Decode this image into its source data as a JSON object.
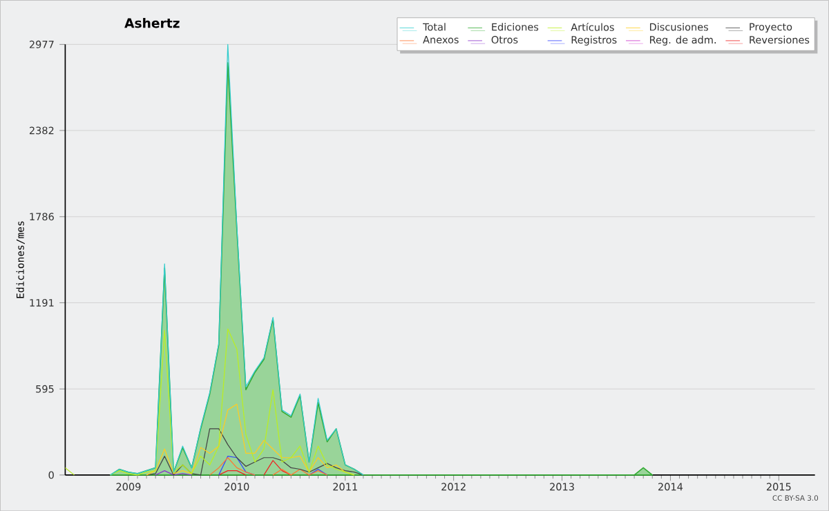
{
  "chart_data": {
    "type": "line",
    "title": "Ashertz",
    "ylabel": "Ediciones/mes",
    "x": [
      "2008-06",
      "2008-07",
      "2008-08",
      "2008-09",
      "2008-10",
      "2008-11",
      "2008-12",
      "2009-01",
      "2009-02",
      "2009-03",
      "2009-04",
      "2009-05",
      "2009-06",
      "2009-07",
      "2009-08",
      "2009-09",
      "2009-10",
      "2009-11",
      "2009-12",
      "2010-01",
      "2010-02",
      "2010-03",
      "2010-04",
      "2010-05",
      "2010-06",
      "2010-07",
      "2010-08",
      "2010-09",
      "2010-10",
      "2010-11",
      "2010-12",
      "2011-01",
      "2011-02",
      "2011-03",
      "2013-09",
      "2013-10",
      "2013-11"
    ],
    "series": [
      {
        "name": "Total",
        "color": "#33cccc",
        "values": [
          null,
          null,
          null,
          null,
          null,
          0,
          40,
          20,
          10,
          30,
          50,
          1460,
          20,
          200,
          50,
          330,
          570,
          910,
          2977,
          1720,
          610,
          720,
          810,
          1090,
          450,
          410,
          560,
          90,
          530,
          240,
          320,
          70,
          40,
          0,
          null,
          null,
          null
        ]
      },
      {
        "name": "Ediciones",
        "color": "#33aa33",
        "type": "area",
        "values": [
          null,
          null,
          null,
          null,
          null,
          0,
          40,
          20,
          10,
          30,
          50,
          1430,
          20,
          190,
          50,
          320,
          560,
          900,
          2850,
          1700,
          590,
          710,
          800,
          1080,
          440,
          400,
          550,
          90,
          500,
          230,
          320,
          70,
          40,
          0,
          0,
          50,
          0
        ]
      },
      {
        "name": "Artículos",
        "color": "#bbee22",
        "values": [
          50,
          0,
          null,
          null,
          null,
          0,
          30,
          10,
          0,
          20,
          30,
          1000,
          20,
          70,
          10,
          130,
          70,
          200,
          1010,
          870,
          280,
          90,
          180,
          590,
          90,
          120,
          200,
          20,
          200,
          70,
          40,
          20,
          0,
          null,
          null,
          null,
          null
        ]
      },
      {
        "name": "Discusiones",
        "color": "#ffcc22",
        "values": [
          null,
          null,
          null,
          null,
          null,
          null,
          null,
          null,
          null,
          0,
          30,
          180,
          10,
          30,
          10,
          190,
          150,
          200,
          450,
          490,
          150,
          150,
          240,
          180,
          120,
          120,
          130,
          20,
          120,
          50,
          70,
          20,
          0,
          null,
          null,
          null,
          null
        ]
      },
      {
        "name": "Proyecto",
        "color": "#444444",
        "values": [
          null,
          null,
          null,
          null,
          null,
          null,
          null,
          null,
          null,
          0,
          10,
          130,
          0,
          70,
          10,
          0,
          320,
          320,
          210,
          120,
          60,
          90,
          120,
          120,
          100,
          50,
          40,
          20,
          50,
          80,
          50,
          30,
          20,
          0,
          null,
          null,
          null
        ]
      },
      {
        "name": "Anexos",
        "color": "#ff7733",
        "values": [
          null,
          null,
          null,
          null,
          null,
          null,
          null,
          null,
          null,
          null,
          null,
          null,
          null,
          null,
          null,
          null,
          0,
          50,
          120,
          50,
          20,
          0,
          null,
          0,
          40,
          0,
          40,
          0,
          30,
          0,
          null,
          null,
          null,
          null,
          null,
          null,
          null
        ]
      },
      {
        "name": "Otros",
        "color": "#8833cc",
        "values": [
          null,
          null,
          null,
          null,
          null,
          null,
          null,
          null,
          null,
          null,
          0,
          30,
          0,
          10,
          0,
          null,
          null,
          null,
          null,
          null,
          null,
          null,
          null,
          null,
          null,
          null,
          null,
          null,
          null,
          null,
          null,
          null,
          null,
          null,
          null,
          null,
          null
        ]
      },
      {
        "name": "Registros",
        "color": "#3344ff",
        "values": [
          null,
          null,
          null,
          null,
          null,
          null,
          null,
          null,
          null,
          null,
          null,
          null,
          null,
          null,
          null,
          null,
          null,
          0,
          130,
          120,
          20,
          0,
          null,
          null,
          null,
          null,
          null,
          0,
          40,
          0,
          null,
          null,
          null,
          null,
          null,
          null,
          null
        ]
      },
      {
        "name": "Reg. de adm.",
        "color": "#cc33cc",
        "values": [
          null,
          null,
          null,
          null,
          null,
          null,
          null,
          null,
          null,
          null,
          null,
          null,
          null,
          null,
          null,
          null,
          null,
          null,
          null,
          null,
          null,
          null,
          null,
          null,
          null,
          null,
          null,
          null,
          null,
          null,
          null,
          null,
          null,
          null,
          null,
          null,
          null
        ]
      },
      {
        "name": "Reversiones",
        "color": "#ee2222",
        "values": [
          null,
          null,
          null,
          null,
          null,
          null,
          null,
          null,
          null,
          null,
          null,
          null,
          null,
          null,
          null,
          null,
          null,
          0,
          30,
          30,
          0,
          null,
          0,
          100,
          30,
          0,
          null,
          null,
          null,
          null,
          null,
          null,
          null,
          null,
          null,
          null,
          null
        ]
      }
    ],
    "xlim": [
      "2008-06",
      "2015-05"
    ],
    "xticks": [
      {
        "value": "2009-01",
        "label": "2009"
      },
      {
        "value": "2010-01",
        "label": "2010"
      },
      {
        "value": "2011-01",
        "label": "2011"
      },
      {
        "value": "2012-01",
        "label": "2012"
      },
      {
        "value": "2013-01",
        "label": "2013"
      },
      {
        "value": "2014-01",
        "label": "2014"
      },
      {
        "value": "2015-01",
        "label": "2015"
      }
    ],
    "ylim": [
      0,
      2977
    ],
    "yticks": [
      0,
      595,
      1191,
      1786,
      2382,
      2977
    ],
    "grid": "y",
    "legend": "top right",
    "annotations": [
      "CC BY-SA 3.0"
    ]
  }
}
